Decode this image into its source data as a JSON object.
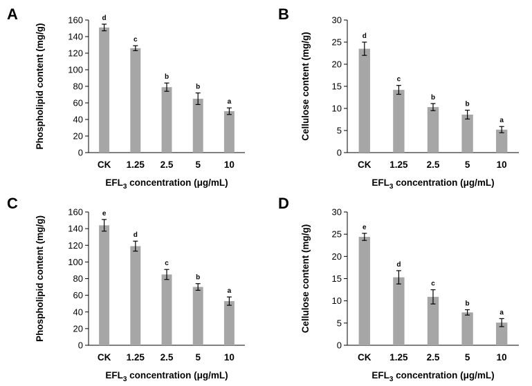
{
  "chart_data": [
    {
      "panel": "A",
      "type": "bar",
      "categories": [
        "CK",
        "1.25",
        "2.5",
        "5",
        "10"
      ],
      "values": [
        151,
        126,
        79,
        65,
        50
      ],
      "errors": [
        4,
        3,
        5,
        7,
        4
      ],
      "significance": [
        "d",
        "c",
        "b",
        "b",
        "a"
      ],
      "ylabel": "Phospholipid content (mg/g)",
      "xlabel": {
        "pre": "EFL",
        "sub": "3",
        "post": " concentration (μg/mL)"
      },
      "ylim": [
        0,
        160
      ],
      "yticks": [
        0,
        20,
        40,
        60,
        80,
        100,
        120,
        140,
        160
      ],
      "bar_color": "#a6a6a6"
    },
    {
      "panel": "B",
      "type": "bar",
      "categories": [
        "CK",
        "1.25",
        "2.5",
        "5",
        "10"
      ],
      "values": [
        23.5,
        14.2,
        10.3,
        8.6,
        5.2
      ],
      "errors": [
        1.5,
        1.0,
        0.8,
        1.0,
        0.7
      ],
      "significance": [
        "d",
        "c",
        "b",
        "b",
        "a"
      ],
      "ylabel": "Cellulose  content (mg/g)",
      "xlabel": {
        "pre": "EFL",
        "sub": "3",
        "post": " concentration (μg/mL)"
      },
      "ylim": [
        0,
        30
      ],
      "yticks": [
        0,
        5,
        10,
        15,
        20,
        25,
        30
      ],
      "bar_color": "#a6a6a6"
    },
    {
      "panel": "C",
      "type": "bar",
      "categories": [
        "CK",
        "1.25",
        "2.5",
        "5",
        "10"
      ],
      "values": [
        144,
        119,
        85,
        70,
        53
      ],
      "errors": [
        7,
        6,
        6,
        4,
        5
      ],
      "significance": [
        "e",
        "d",
        "c",
        "b",
        "a"
      ],
      "ylabel": "Phospholipid content (mg/g)",
      "xlabel": {
        "pre": "EFL",
        "sub": "3",
        "post": " concentration (μg/mL)"
      },
      "ylim": [
        0,
        160
      ],
      "yticks": [
        0,
        20,
        40,
        60,
        80,
        100,
        120,
        140,
        160
      ],
      "bar_color": "#a6a6a6"
    },
    {
      "panel": "D",
      "type": "bar",
      "categories": [
        "CK",
        "1.25",
        "2.5",
        "5",
        "10"
      ],
      "values": [
        24.4,
        15.3,
        10.9,
        7.4,
        5.1
      ],
      "errors": [
        0.8,
        1.5,
        1.6,
        0.6,
        0.9
      ],
      "significance": [
        "e",
        "d",
        "c",
        "b",
        "a"
      ],
      "ylabel": "Cellulose  content (mg/g)",
      "xlabel": {
        "pre": "EFL",
        "sub": "3",
        "post": " concentration (μg/mL)"
      },
      "ylim": [
        0,
        30
      ],
      "yticks": [
        0,
        5,
        10,
        15,
        20,
        25,
        30
      ],
      "bar_color": "#a6a6a6"
    }
  ]
}
